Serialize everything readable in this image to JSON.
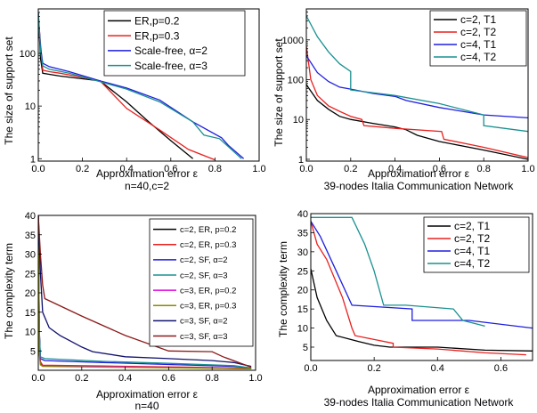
{
  "chart_data": [
    {
      "type": "line",
      "xlabel": "Approximation error ε",
      "ylabel": "The size of support set",
      "caption": "n=40,c=2",
      "yscale": "log",
      "xlim": [
        0,
        1.0
      ],
      "ylim": [
        0.9,
        700
      ],
      "xticks": [
        "0.0",
        "0.2",
        "0.4",
        "0.6",
        "0.8",
        "1.0"
      ],
      "yticks": [
        {
          "v": 1,
          "label": "1"
        },
        {
          "v": 10,
          "label": "10"
        },
        {
          "v": 100,
          "label": "100"
        }
      ],
      "legend_position": "top-right",
      "series": [
        {
          "name": "ER,p=0.2",
          "color": "#000000",
          "x": [
            0,
            0.01,
            0.02,
            0.05,
            0.1,
            0.2,
            0.28,
            0.4,
            0.5,
            0.6,
            0.7
          ],
          "y": [
            600,
            80,
            42,
            40,
            37,
            33,
            30,
            12,
            5,
            2.2,
            1
          ]
        },
        {
          "name": "ER,p=0.3",
          "color": "#e8211f",
          "x": [
            0,
            0.01,
            0.02,
            0.05,
            0.1,
            0.2,
            0.28,
            0.4,
            0.55,
            0.68,
            0.8
          ],
          "y": [
            500,
            150,
            48,
            45,
            42,
            35,
            30,
            9,
            3.5,
            1.5,
            0.95
          ]
        },
        {
          "name": "Scale-free, α=2",
          "color": "#1e1ee0",
          "x": [
            0,
            0.01,
            0.02,
            0.05,
            0.14,
            0.28,
            0.4,
            0.55,
            0.7,
            0.83,
            0.86,
            0.93
          ],
          "y": [
            600,
            130,
            65,
            56,
            45,
            30,
            22,
            13,
            5,
            2.5,
            1.8,
            1
          ]
        },
        {
          "name": "Scale-free, α=3",
          "color": "#1a9090",
          "x": [
            0,
            0.01,
            0.02,
            0.05,
            0.14,
            0.28,
            0.4,
            0.55,
            0.7,
            0.75,
            0.82,
            0.86,
            0.92
          ],
          "y": [
            600,
            110,
            58,
            50,
            42,
            29,
            21,
            12,
            5,
            2.8,
            2.4,
            1.7,
            1
          ]
        }
      ]
    },
    {
      "type": "line",
      "xlabel": "Approximation error ε",
      "ylabel": "The size of support set",
      "caption": "39-nodes Italia Communication Network",
      "yscale": "log",
      "xlim": [
        0,
        1.0
      ],
      "ylim": [
        0.9,
        6000
      ],
      "xticks": [
        "0.0",
        "0.2",
        "0.4",
        "0.6",
        "0.8",
        "1.0"
      ],
      "yticks": [
        {
          "v": 1,
          "label": "1"
        },
        {
          "v": 10,
          "label": "10"
        },
        {
          "v": 100,
          "label": "100"
        },
        {
          "v": 1000,
          "label": "1000"
        }
      ],
      "legend_position": "top-right",
      "series": [
        {
          "name": "c=2, T1",
          "color": "#000000",
          "x": [
            0,
            0.05,
            0.1,
            0.15,
            0.2,
            0.3,
            0.4,
            0.45,
            0.5,
            0.6,
            0.8,
            1.0
          ],
          "y": [
            75,
            30,
            18,
            12,
            10,
            8,
            6.5,
            5.5,
            4,
            2.8,
            1.7,
            1
          ]
        },
        {
          "name": "c=2, T2",
          "color": "#e8211f",
          "x": [
            0,
            0.02,
            0.05,
            0.1,
            0.15,
            0.2,
            0.25,
            0.26,
            0.4,
            0.61,
            0.62,
            0.8,
            1.0
          ],
          "y": [
            700,
            100,
            40,
            22,
            16,
            12,
            10,
            7,
            6,
            5,
            3.2,
            2,
            1.1
          ]
        },
        {
          "name": "c=4, T1",
          "color": "#1e1ee0",
          "x": [
            0,
            0.05,
            0.1,
            0.15,
            0.2,
            0.3,
            0.4,
            0.45,
            0.6,
            0.8,
            1.0
          ],
          "y": [
            400,
            150,
            90,
            65,
            58,
            45,
            38,
            30,
            20,
            13,
            11
          ]
        },
        {
          "name": "c=4, T2",
          "color": "#1a9090",
          "x": [
            0,
            0.05,
            0.1,
            0.15,
            0.2,
            0.2,
            0.4,
            0.6,
            0.8,
            0.8,
            1.0
          ],
          "y": [
            4000,
            1200,
            500,
            250,
            160,
            55,
            40,
            25,
            13,
            7,
            5
          ]
        }
      ]
    },
    {
      "type": "line",
      "xlabel": "Approximation error ε",
      "ylabel": "The complexity term",
      "caption": "n=40",
      "yscale": "linear",
      "xlim": [
        0,
        1.0
      ],
      "ylim": [
        0,
        40
      ],
      "xticks": [
        "0.0",
        "0.2",
        "0.4",
        "0.6",
        "0.8",
        "1.0"
      ],
      "yticks": [
        {
          "v": 5,
          "label": "5"
        },
        {
          "v": 10,
          "label": "10"
        },
        {
          "v": 15,
          "label": "15"
        },
        {
          "v": 20,
          "label": "20"
        },
        {
          "v": 25,
          "label": "25"
        },
        {
          "v": 30,
          "label": "30"
        },
        {
          "v": 35,
          "label": "35"
        },
        {
          "v": 40,
          "label": "40"
        }
      ],
      "legend_position": "top-right",
      "series": [
        {
          "name": "c=2, ER, p=0.2",
          "color": "#000000",
          "x": [
            0,
            0.005,
            0.01,
            0.02,
            0.3,
            0.7,
            0.98
          ],
          "y": [
            40,
            10,
            2,
            1.2,
            1,
            0.7,
            0.5
          ]
        },
        {
          "name": "c=2, ER, p=0.3",
          "color": "#e8211f",
          "x": [
            0,
            0.005,
            0.01,
            0.02,
            0.3,
            0.7,
            0.98
          ],
          "y": [
            40,
            9,
            2.2,
            1.3,
            1.1,
            0.8,
            0.5
          ]
        },
        {
          "name": "c=2, SF, α=2",
          "color": "#1e1ee0",
          "x": [
            0,
            0.005,
            0.01,
            0.03,
            0.3,
            0.6,
            0.9,
            0.98
          ],
          "y": [
            40,
            10,
            3,
            2.5,
            2,
            1.5,
            1,
            0.6
          ]
        },
        {
          "name": "c=2, SF, α=3",
          "color": "#1a9090",
          "x": [
            0,
            0.005,
            0.01,
            0.03,
            0.3,
            0.6,
            0.9,
            0.98
          ],
          "y": [
            40,
            9,
            3.5,
            3,
            2.3,
            1.8,
            1.2,
            0.6
          ]
        },
        {
          "name": "c=3, ER, p=0.2",
          "color": "#e000e0",
          "x": [
            0,
            0.005,
            0.01,
            0.02,
            0.5,
            0.98
          ],
          "y": [
            40,
            5,
            1.6,
            1.2,
            0.8,
            0.4
          ]
        },
        {
          "name": "c=3, ER, p=0.3",
          "color": "#8a8a00",
          "x": [
            0,
            0.005,
            0.01,
            0.02,
            0.5,
            0.98
          ],
          "y": [
            40,
            4,
            1.4,
            1,
            0.7,
            0.4
          ]
        },
        {
          "name": "c=3, SF, α=2",
          "color": "#10106e",
          "x": [
            0,
            0.01,
            0.02,
            0.05,
            0.1,
            0.2,
            0.25,
            0.4,
            0.6,
            0.8,
            0.9,
            0.98
          ],
          "y": [
            40,
            25,
            15,
            11,
            9,
            6,
            4.8,
            3.5,
            3,
            2.5,
            2,
            1
          ]
        },
        {
          "name": "c=3, SF, α=3",
          "color": "#8b1a1a",
          "x": [
            0,
            0.01,
            0.02,
            0.03,
            0.2,
            0.4,
            0.6,
            0.8,
            0.85,
            0.98
          ],
          "y": [
            40,
            30,
            22,
            18.5,
            14,
            9,
            5,
            4.8,
            3.5,
            0.8
          ]
        }
      ]
    },
    {
      "type": "line",
      "xlabel": "Approximation error ε",
      "ylabel": "The complexity term",
      "caption": "39-nodes Italia Communication Network",
      "yscale": "linear",
      "xlim": [
        0,
        0.7
      ],
      "ylim": [
        1.5,
        40
      ],
      "xticks": [
        "0.0",
        "0.2",
        "0.4",
        "0.6"
      ],
      "xtick_values": [
        0,
        0.2,
        0.4,
        0.6
      ],
      "yticks": [
        {
          "v": 5,
          "label": "5"
        },
        {
          "v": 10,
          "label": "10"
        },
        {
          "v": 15,
          "label": "15"
        },
        {
          "v": 20,
          "label": "20"
        },
        {
          "v": 25,
          "label": "25"
        },
        {
          "v": 30,
          "label": "30"
        },
        {
          "v": 35,
          "label": "35"
        },
        {
          "v": 40,
          "label": "40"
        }
      ],
      "legend_position": "top-right",
      "series": [
        {
          "name": "c=2, T1",
          "color": "#000000",
          "x": [
            0,
            0.02,
            0.05,
            0.08,
            0.15,
            0.2,
            0.25,
            0.4,
            0.55,
            0.7
          ],
          "y": [
            25.5,
            18,
            12,
            8,
            6.5,
            5.5,
            5,
            5,
            4.2,
            4
          ]
        },
        {
          "name": "c=2, T2",
          "color": "#e8211f",
          "x": [
            0,
            0.02,
            0.05,
            0.1,
            0.13,
            0.14,
            0.2,
            0.26,
            0.26,
            0.4,
            0.55,
            0.68
          ],
          "y": [
            38,
            32,
            28,
            18,
            10,
            8,
            7,
            6,
            5,
            4.5,
            3.5,
            3
          ]
        },
        {
          "name": "c=4, T1",
          "color": "#1e1ee0",
          "x": [
            0,
            0.03,
            0.08,
            0.13,
            0.32,
            0.32,
            0.5,
            0.7
          ],
          "y": [
            38,
            34,
            25,
            16,
            15,
            12,
            12,
            10
          ]
        },
        {
          "name": "c=4, T2",
          "color": "#1a9090",
          "x": [
            0,
            0.13,
            0.17,
            0.2,
            0.23,
            0.3,
            0.45,
            0.48,
            0.55
          ],
          "y": [
            39,
            39,
            32,
            25,
            16,
            16,
            15,
            12,
            10.5
          ]
        }
      ]
    }
  ]
}
